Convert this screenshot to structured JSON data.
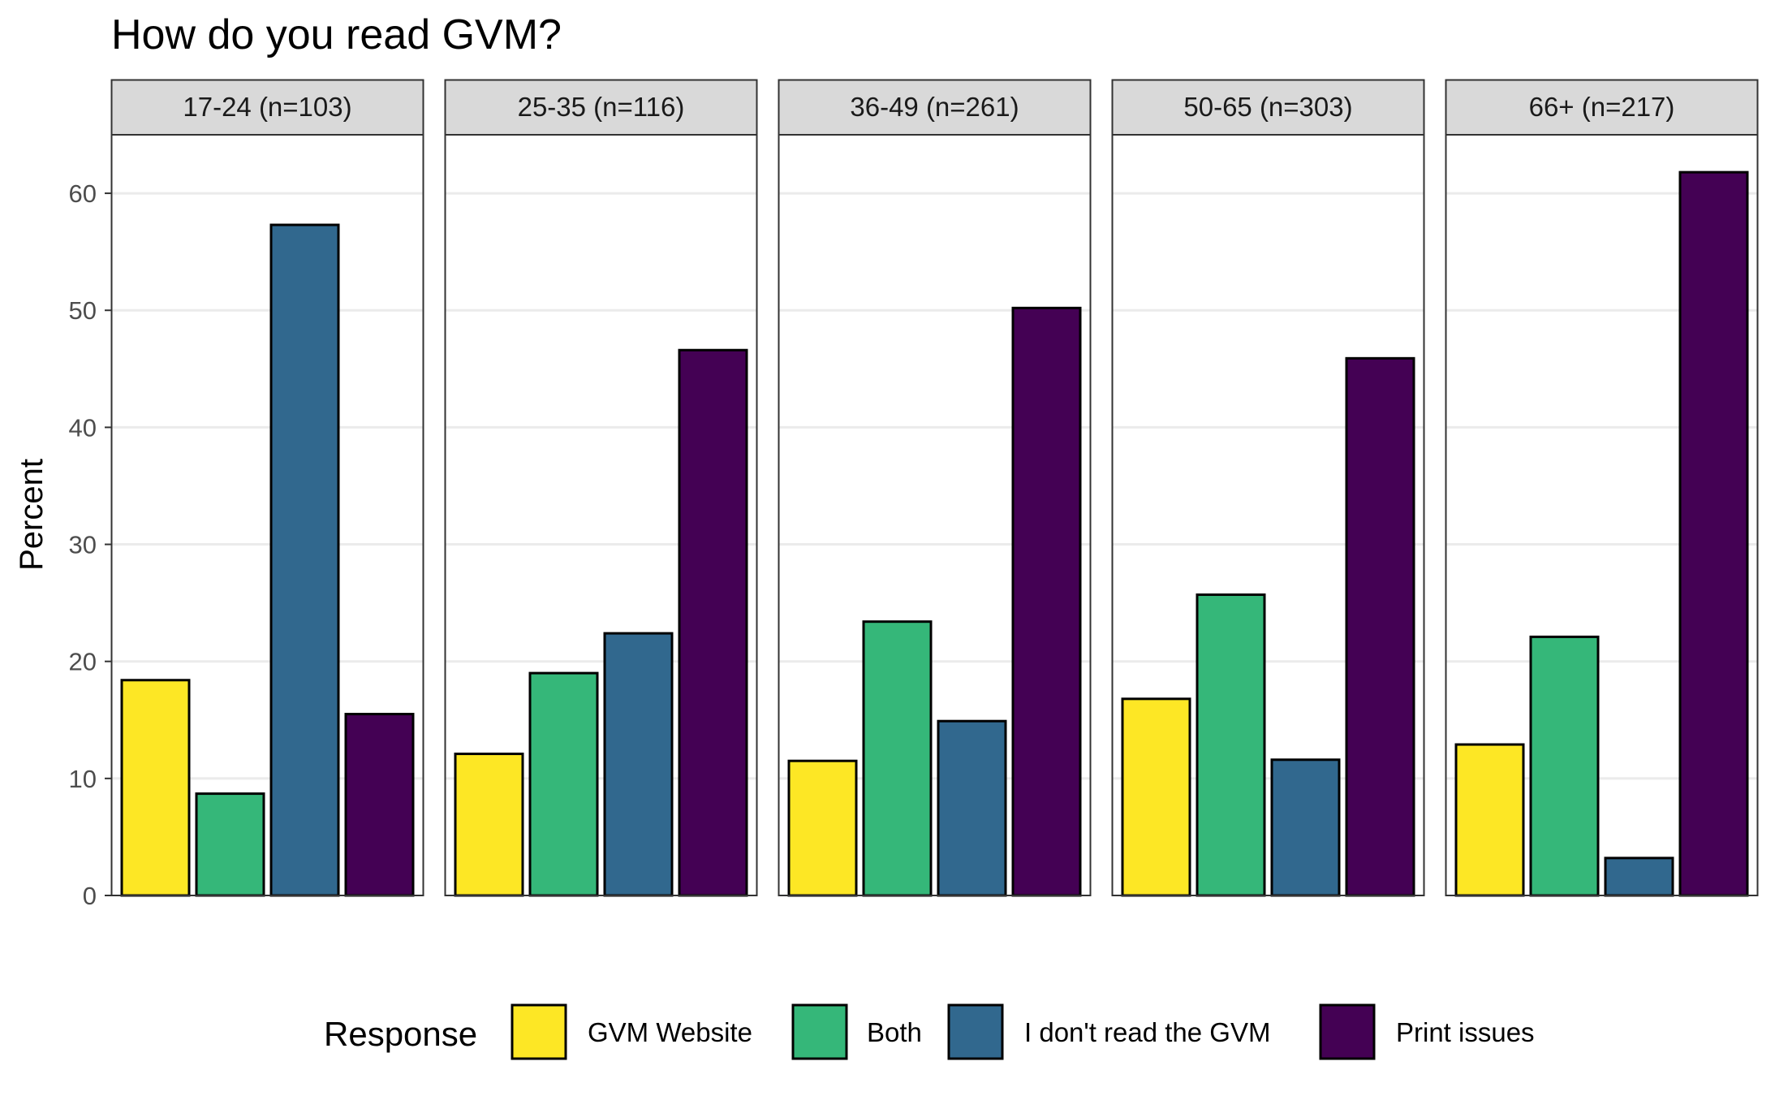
{
  "chart_data": {
    "type": "bar",
    "title": "How do you read GVM?",
    "ylabel": "Percent",
    "xlabel": "",
    "ylim": [
      0,
      65
    ],
    "yticks": [
      0,
      10,
      20,
      30,
      40,
      50,
      60
    ],
    "grid": true,
    "legend_placement": "bottom",
    "legend_title": "Response",
    "series": [
      {
        "name": "GVM Website",
        "color": "#fde725"
      },
      {
        "name": "Both",
        "color": "#35b779"
      },
      {
        "name": "I don't read the GVM",
        "color": "#31688e"
      },
      {
        "name": "Print issues",
        "color": "#440154"
      }
    ],
    "facets": [
      {
        "label": "17-24 (n=103)",
        "values": [
          18.4,
          8.7,
          57.3,
          15.5
        ]
      },
      {
        "label": "25-35 (n=116)",
        "values": [
          12.1,
          19.0,
          22.4,
          46.6
        ]
      },
      {
        "label": "36-49 (n=261)",
        "values": [
          11.5,
          23.4,
          14.9,
          50.2
        ]
      },
      {
        "label": "50-65 (n=303)",
        "values": [
          16.8,
          25.7,
          11.6,
          45.9
        ]
      },
      {
        "label": "66+ (n=217)",
        "values": [
          12.9,
          22.1,
          3.2,
          61.8
        ]
      }
    ]
  }
}
